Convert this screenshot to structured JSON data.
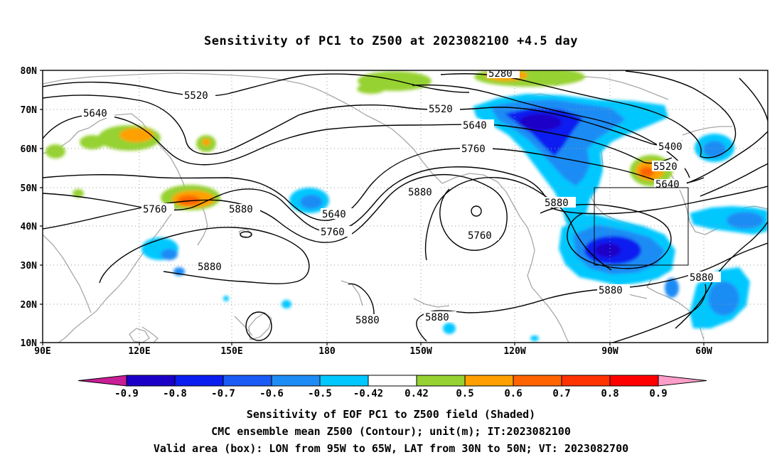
{
  "title": "Sensitivity of PC1 to Z500 at 2023082100 +4.5 day",
  "lat_labels": [
    "80N",
    "70N",
    "60N",
    "50N",
    "40N",
    "30N",
    "20N",
    "10N"
  ],
  "lon_labels": [
    "90E",
    "120E",
    "150E",
    "180",
    "150W",
    "120W",
    "90W",
    "60W"
  ],
  "contour_labels": [
    {
      "text": "5280"
    },
    {
      "text": "5520"
    },
    {
      "text": "5520"
    },
    {
      "text": "5640"
    },
    {
      "text": "5640"
    },
    {
      "text": "5760"
    },
    {
      "text": "5400"
    },
    {
      "text": "5520"
    },
    {
      "text": "5640"
    },
    {
      "text": "5760"
    },
    {
      "text": "5880"
    },
    {
      "text": "5640"
    },
    {
      "text": "5760"
    },
    {
      "text": "5880"
    },
    {
      "text": "5760"
    },
    {
      "text": "5880"
    },
    {
      "text": "5880"
    },
    {
      "text": "5880"
    },
    {
      "text": "5880"
    },
    {
      "text": "5880"
    },
    {
      "text": "5880"
    }
  ],
  "colorbar": {
    "colors": [
      "#1d00c8",
      "#0a1ef0",
      "#1a5af5",
      "#1e8cf5",
      "#00c8ff",
      "#ffffff",
      "#96d232",
      "#ffa000",
      "#ff6400",
      "#ff3200",
      "#ff0000"
    ],
    "low_color": "#c81e96",
    "high_color": "#ff9ec8",
    "labels": [
      "-0.9",
      "-0.8",
      "-0.7",
      "-0.6",
      "-0.5",
      "-0.42",
      "0.42",
      "0.5",
      "0.6",
      "0.7",
      "0.8",
      "0.9"
    ]
  },
  "caption": [
    "Sensitivity of EOF PC1 to Z500 field (Shaded)",
    "CMC ensemble mean Z500 (Contour); unit(m); IT:2023082100",
    "Valid area (box): LON from 95W to 65W, LAT from 30N to 50N; VT: 2023082700"
  ]
}
